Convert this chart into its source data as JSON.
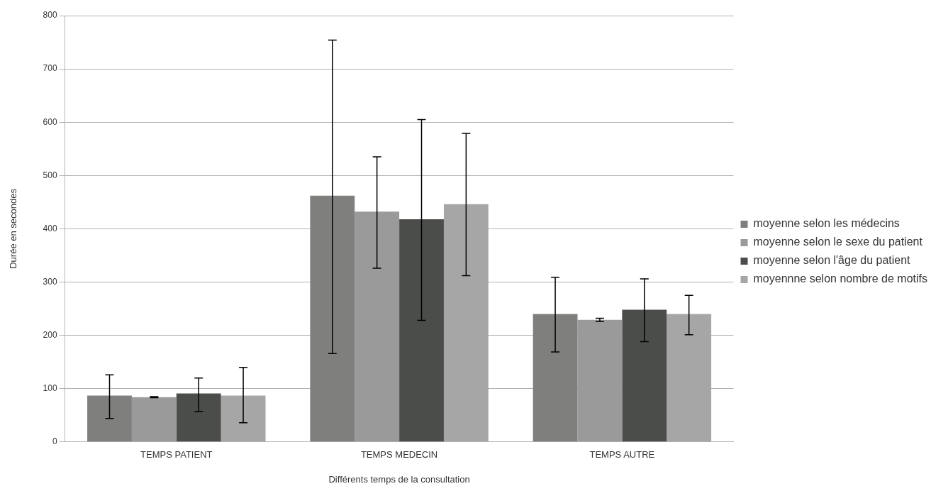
{
  "chart_data": {
    "type": "bar",
    "xlabel": "Différents temps de la consultation",
    "ylabel": "Durée en secondes",
    "categories": [
      "TEMPS PATIENT",
      "TEMPS MEDECIN",
      "TEMPS AUTRE"
    ],
    "series": [
      {
        "name": "moyenne selon les médecins",
        "color": "#7f807e",
        "values": [
          87,
          462,
          240
        ],
        "errors": [
          [
            44,
            126
          ],
          [
            166,
            754
          ],
          [
            169,
            309
          ]
        ]
      },
      {
        "name": "moyenne selon le sexe du patient",
        "color": "#9a9a9a",
        "values": [
          84,
          432,
          229
        ],
        "errors": [
          [
            83,
            85
          ],
          [
            326,
            535
          ],
          [
            226,
            232
          ]
        ]
      },
      {
        "name": "moyenne selon l'âge du patient",
        "color": "#4b4d4a",
        "values": [
          91,
          418,
          248
        ],
        "errors": [
          [
            57,
            120
          ],
          [
            228,
            605
          ],
          [
            188,
            306
          ]
        ]
      },
      {
        "name": "moyennne selon nombre de motifs",
        "color": "#a6a6a6",
        "values": [
          87,
          446,
          240
        ],
        "errors": [
          [
            36,
            140
          ],
          [
            312,
            579
          ],
          [
            201,
            275
          ]
        ]
      }
    ],
    "ylim": [
      0,
      800
    ],
    "yticks": [
      0,
      100,
      200,
      300,
      400,
      500,
      600,
      700,
      800
    ],
    "grid": "y",
    "legend": "right"
  }
}
